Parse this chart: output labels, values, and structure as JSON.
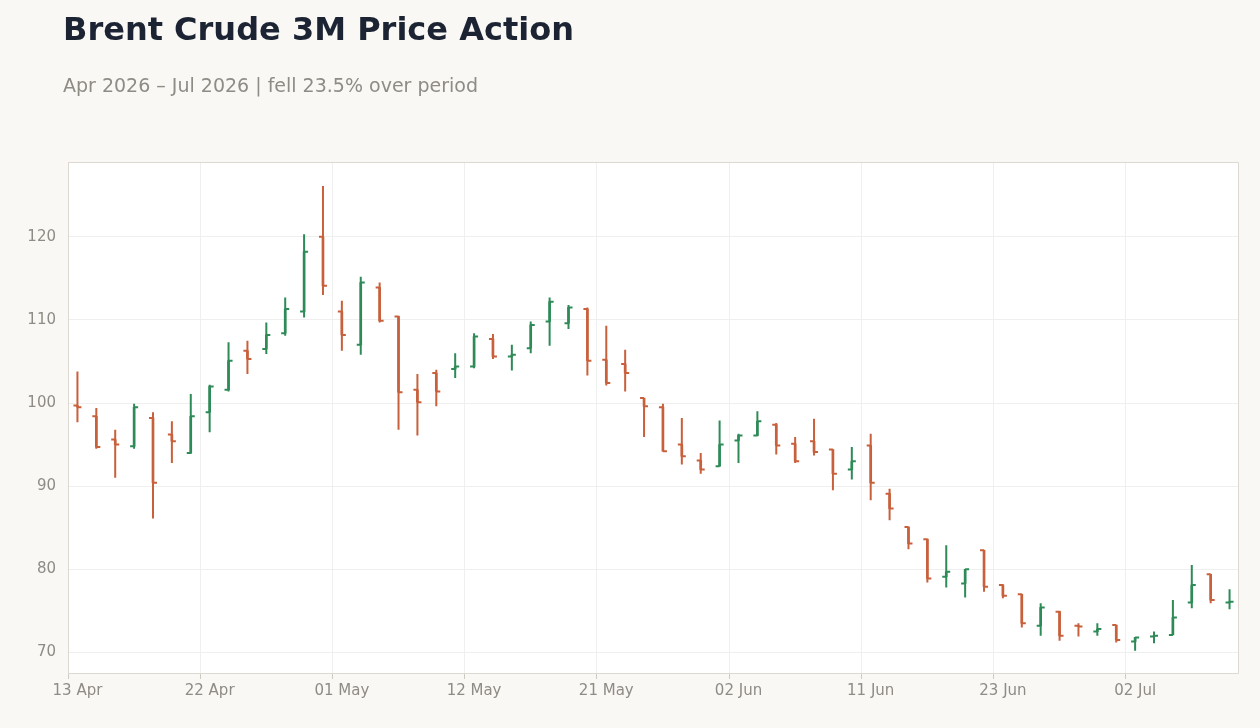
{
  "chart_data": {
    "type": "candlestick",
    "title": "Brent Crude 3M Price Action",
    "subtitle": "Apr 2026 – Jul 2026 | fell 23.5% over period",
    "categories": [
      "13 Apr",
      null,
      null,
      null,
      null,
      null,
      null,
      "22 Apr",
      null,
      null,
      null,
      null,
      null,
      null,
      "01 May",
      null,
      null,
      null,
      null,
      null,
      null,
      "12 May",
      null,
      null,
      null,
      null,
      null,
      null,
      "21 May",
      null,
      null,
      null,
      null,
      null,
      null,
      "02 Jun",
      null,
      null,
      null,
      null,
      null,
      null,
      "11 Jun",
      null,
      null,
      null,
      null,
      null,
      null,
      "23 Jun",
      null,
      null,
      null,
      null,
      null,
      null,
      "02 Jul",
      null,
      null,
      null,
      null,
      null
    ],
    "ohlc": [
      [
        99.7,
        103.8,
        97.7,
        99.5
      ],
      [
        98.4,
        99.4,
        94.5,
        94.7
      ],
      [
        95.6,
        96.8,
        91.0,
        95.0
      ],
      [
        94.8,
        99.9,
        94.5,
        99.5
      ],
      [
        98.2,
        98.9,
        86.1,
        90.4
      ],
      [
        96.2,
        97.8,
        92.8,
        95.4
      ],
      [
        94.0,
        101.1,
        93.9,
        98.4
      ],
      [
        98.9,
        102.2,
        96.5,
        102.0
      ],
      [
        101.6,
        107.3,
        101.4,
        105.1
      ],
      [
        106.3,
        107.5,
        103.5,
        105.3
      ],
      [
        106.5,
        109.7,
        105.9,
        108.2
      ],
      [
        108.4,
        112.7,
        108.1,
        111.3
      ],
      [
        111.0,
        120.3,
        110.3,
        118.2
      ],
      [
        120.0,
        126.1,
        113.0,
        114.1
      ],
      [
        111.0,
        112.3,
        106.3,
        108.2
      ],
      [
        107.0,
        115.2,
        105.8,
        114.5
      ],
      [
        113.9,
        114.5,
        109.7,
        109.9
      ],
      [
        110.4,
        110.5,
        96.8,
        101.3
      ],
      [
        101.6,
        103.5,
        96.1,
        100.1
      ],
      [
        103.6,
        104.0,
        99.6,
        101.4
      ],
      [
        104.1,
        106.0,
        103.0,
        104.4
      ],
      [
        104.4,
        108.4,
        104.2,
        108.0
      ],
      [
        107.7,
        108.3,
        105.3,
        105.6
      ],
      [
        105.6,
        107.0,
        103.9,
        105.8
      ],
      [
        106.6,
        109.8,
        106.0,
        109.4
      ],
      [
        109.8,
        112.7,
        106.9,
        112.2
      ],
      [
        109.6,
        111.8,
        108.9,
        111.5
      ],
      [
        111.3,
        111.5,
        103.3,
        105.1
      ],
      [
        105.2,
        109.3,
        102.1,
        102.4
      ],
      [
        104.7,
        106.4,
        101.4,
        103.6
      ],
      [
        100.6,
        100.6,
        95.9,
        99.6
      ],
      [
        99.5,
        99.9,
        94.2,
        94.2
      ],
      [
        95.0,
        98.2,
        92.6,
        93.6
      ],
      [
        93.1,
        94.0,
        91.5,
        92.0
      ],
      [
        92.4,
        97.9,
        92.4,
        95.0
      ],
      [
        95.5,
        96.3,
        92.8,
        96.1
      ],
      [
        96.1,
        99.0,
        96.0,
        97.8
      ],
      [
        97.4,
        97.6,
        93.8,
        94.9
      ],
      [
        95.1,
        95.9,
        92.8,
        93.0
      ],
      [
        95.4,
        98.1,
        93.7,
        94.1
      ],
      [
        94.4,
        94.4,
        89.5,
        91.5
      ],
      [
        92.0,
        94.7,
        90.8,
        93.0
      ],
      [
        94.9,
        96.3,
        88.3,
        90.4
      ],
      [
        89.1,
        89.7,
        85.9,
        87.3
      ],
      [
        85.1,
        85.1,
        82.4,
        83.1
      ],
      [
        83.6,
        83.7,
        78.4,
        78.9
      ],
      [
        79.1,
        82.9,
        77.8,
        79.7
      ],
      [
        78.3,
        80.0,
        76.6,
        80.0
      ],
      [
        82.3,
        82.3,
        77.3,
        77.9
      ],
      [
        78.1,
        78.2,
        76.5,
        76.8
      ],
      [
        77.0,
        77.0,
        73.0,
        73.5
      ],
      [
        73.2,
        75.9,
        72.0,
        75.4
      ],
      [
        74.9,
        75.0,
        71.4,
        72.0
      ],
      [
        73.2,
        73.5,
        71.9,
        73.1
      ],
      [
        72.5,
        73.5,
        72.0,
        72.8
      ],
      [
        73.3,
        73.3,
        71.2,
        71.5
      ],
      [
        71.3,
        71.8,
        70.2,
        71.8
      ],
      [
        71.9,
        72.5,
        71.1,
        72.0
      ],
      [
        72.1,
        76.3,
        72.1,
        74.2
      ],
      [
        76.0,
        80.5,
        75.3,
        78.1
      ],
      [
        79.4,
        79.4,
        75.9,
        76.3
      ],
      [
        76.0,
        77.6,
        75.2,
        76.1
      ]
    ],
    "colors": [
      "#c8603c",
      "#c8603c",
      "#c8603c",
      "#2e8b57",
      "#c8603c",
      "#c8603c",
      "#2e8b57",
      "#2e8b57",
      "#2e8b57",
      "#c8603c",
      "#2e8b57",
      "#2e8b57",
      "#2e8b57",
      "#c8603c",
      "#c8603c",
      "#2e8b57",
      "#c8603c",
      "#c8603c",
      "#c8603c",
      "#c8603c",
      "#2e8b57",
      "#2e8b57",
      "#c8603c",
      "#2e8b57",
      "#2e8b57",
      "#2e8b57",
      "#2e8b57",
      "#c8603c",
      "#c8603c",
      "#c8603c",
      "#c8603c",
      "#c8603c",
      "#c8603c",
      "#c8603c",
      "#2e8b57",
      "#2e8b57",
      "#2e8b57",
      "#c8603c",
      "#c8603c",
      "#c8603c",
      "#c8603c",
      "#2e8b57",
      "#c8603c",
      "#c8603c",
      "#c8603c",
      "#c8603c",
      "#2e8b57",
      "#2e8b57",
      "#c8603c",
      "#c8603c",
      "#c8603c",
      "#2e8b57",
      "#c8603c",
      "#c8603c",
      "#2e8b57",
      "#c8603c",
      "#2e8b57",
      "#2e8b57",
      "#2e8b57",
      "#2e8b57",
      "#c8603c",
      "#2e8b57"
    ],
    "ylim": [
      67.4,
      129
    ],
    "yticks": [
      70,
      80,
      90,
      100,
      110,
      120
    ],
    "grid": true
  }
}
